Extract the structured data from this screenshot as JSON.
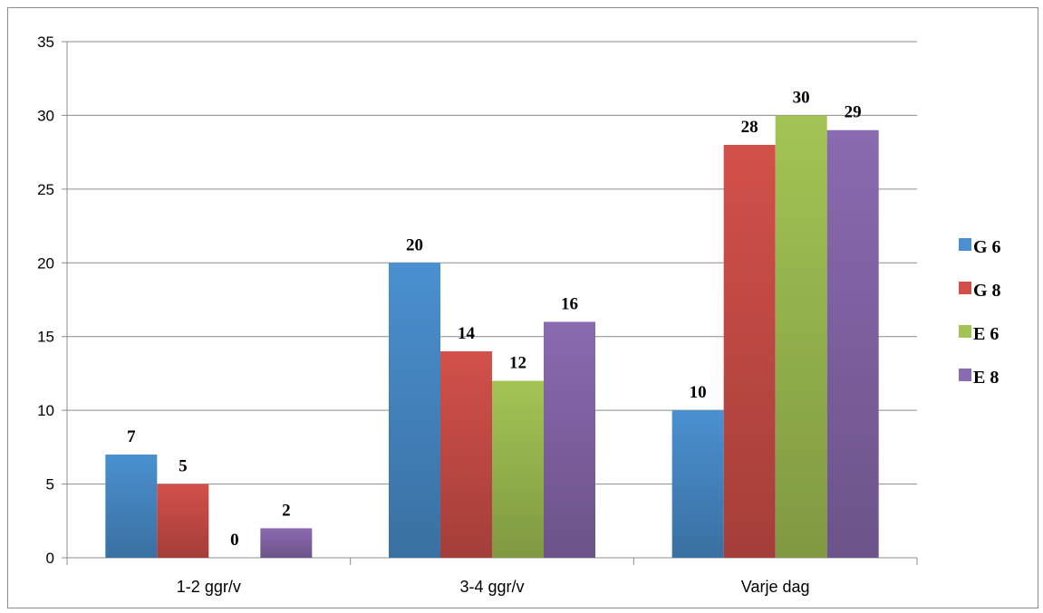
{
  "chart_data": {
    "type": "bar",
    "categories": [
      "1-2 ggr/v",
      "3-4 ggr/v",
      "Varje dag"
    ],
    "series": [
      {
        "name": "G 6",
        "values": [
          7,
          20,
          10
        ],
        "color": "#4a90d0"
      },
      {
        "name": "G 8",
        "values": [
          5,
          14,
          28
        ],
        "color": "#d2504a"
      },
      {
        "name": "E 6",
        "values": [
          0,
          12,
          30
        ],
        "color": "#a3c454"
      },
      {
        "name": "E 8",
        "values": [
          2,
          16,
          29
        ],
        "color": "#8a6ab0"
      }
    ],
    "yticks": [
      "0",
      "5",
      "10",
      "15",
      "20",
      "25",
      "30",
      "35"
    ],
    "ylim": [
      0,
      35
    ],
    "title": "",
    "xlabel": "",
    "ylabel": "",
    "grid": true,
    "legend_position": "right"
  }
}
